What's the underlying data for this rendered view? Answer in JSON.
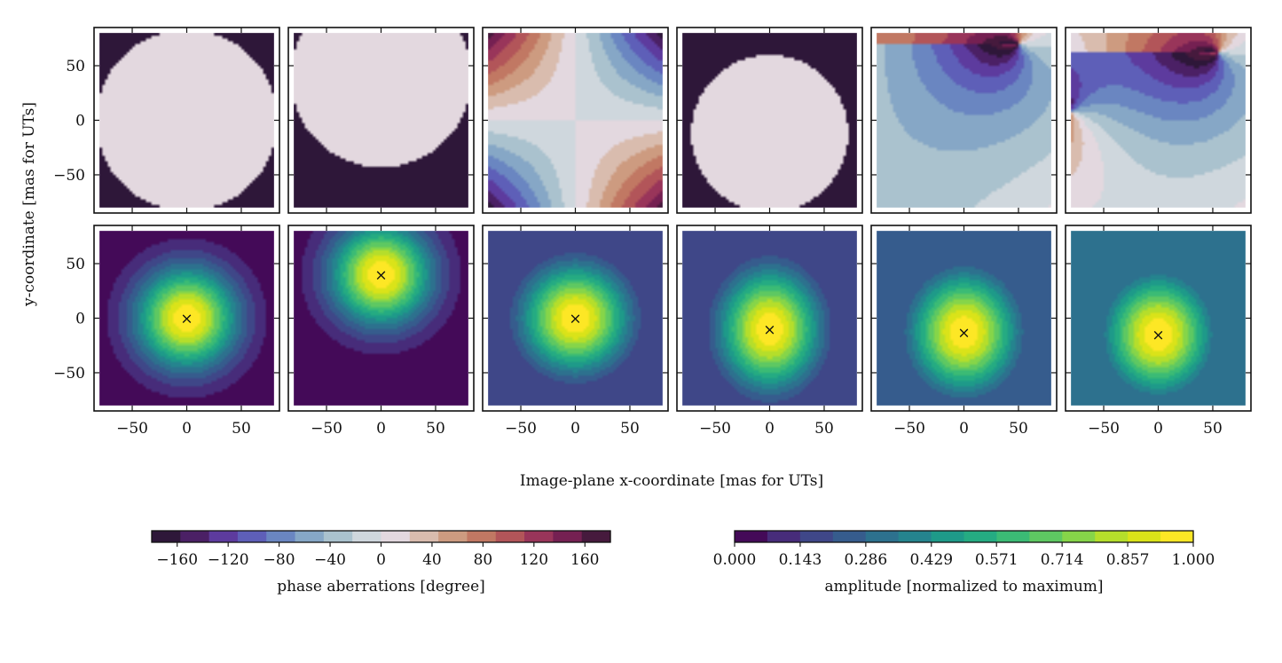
{
  "chart_data": {
    "type": "heatmap",
    "layout": "2 rows x 6 columns of image-plane maps",
    "xlabel": "Image-plane x-coordinate [mas for UTs]",
    "ylabel": "y-coordinate [mas for UTs]",
    "xlim": [
      -85,
      85
    ],
    "ylim": [
      -85,
      85
    ],
    "data_extent": [
      -80,
      80
    ],
    "xticks": [
      -50,
      0,
      50
    ],
    "yticks": [
      -50,
      0,
      50
    ],
    "xtick_labels": [
      "−50",
      "0",
      "50"
    ],
    "ytick_labels": [
      "−50",
      "0",
      "50"
    ],
    "rows": [
      {
        "name": "phase",
        "quantity": "phase aberrations [degree]",
        "panels": [
          {
            "name": "panel-1",
            "kind": "disk",
            "radius": 83,
            "cx": 0,
            "cy": 0
          },
          {
            "name": "panel-2",
            "kind": "disk",
            "radius": 83,
            "cx": 0,
            "cy": 40
          },
          {
            "name": "panel-3",
            "kind": "astigmatism",
            "amplitude": 170
          },
          {
            "name": "panel-4",
            "kind": "disk",
            "radius": 72,
            "cx": 0,
            "cy": -12
          },
          {
            "name": "panel-5",
            "kind": "vortex",
            "vortices": [
              [
                50,
                70
              ]
            ]
          },
          {
            "name": "panel-6",
            "kind": "vortex",
            "vortices": [
              [
                55,
                62
              ],
              [
                -80,
                8
              ]
            ]
          }
        ]
      },
      {
        "name": "amplitude",
        "quantity": "amplitude [normalized to maximum]",
        "panels": [
          {
            "name": "panel-1",
            "peak": [
              0,
              0
            ],
            "sigma": [
              32,
              32
            ],
            "floor": 0.02,
            "marker": [
              0,
              0
            ]
          },
          {
            "name": "panel-2",
            "peak": [
              0,
              40
            ],
            "sigma": [
              32,
              32
            ],
            "floor": 0.05,
            "marker": [
              0,
              40
            ]
          },
          {
            "name": "panel-3",
            "peak": [
              0,
              0
            ],
            "sigma": [
              34,
              34
            ],
            "floor": 0.18,
            "marker": [
              0,
              0
            ]
          },
          {
            "name": "panel-4",
            "peak": [
              0,
              -10
            ],
            "sigma": [
              32,
              38
            ],
            "floor": 0.15,
            "marker": [
              0,
              -10
            ]
          },
          {
            "name": "panel-5",
            "peak": [
              0,
              -13
            ],
            "sigma": [
              34,
              38
            ],
            "floor": 0.28,
            "marker": [
              0,
              -13
            ]
          },
          {
            "name": "panel-6",
            "peak": [
              0,
              -15
            ],
            "sigma": [
              34,
              38
            ],
            "floor": 0.3,
            "marker": [
              0,
              -15
            ]
          }
        ]
      }
    ],
    "colorbars": [
      {
        "name": "phase",
        "label": "phase aberrations [degree]",
        "range": [
          -180,
          180
        ],
        "ticks": [
          -160,
          -120,
          -80,
          -40,
          0,
          40,
          80,
          120,
          160
        ],
        "tick_labels": [
          "−160",
          "−120",
          "−80",
          "−40",
          "0",
          "40",
          "80",
          "120",
          "160"
        ],
        "colors": [
          "#2e1739",
          "#4b2065",
          "#5d3b9e",
          "#5e5fb8",
          "#6a86c1",
          "#86a7c6",
          "#aac2ce",
          "#cfd7dd",
          "#e3d8df",
          "#d9bcae",
          "#cd9b80",
          "#c17863",
          "#b25559",
          "#99355a",
          "#752052",
          "#461a3d"
        ]
      },
      {
        "name": "amplitude",
        "label": "amplitude [normalized to maximum]",
        "range": [
          0,
          1
        ],
        "ticks": [
          0.0,
          0.143,
          0.286,
          0.429,
          0.571,
          0.714,
          0.857,
          1.0
        ],
        "tick_labels": [
          "0.000",
          "0.143",
          "0.286",
          "0.429",
          "0.571",
          "0.714",
          "0.857",
          "1.000"
        ],
        "colors": [
          "#440a58",
          "#472c7a",
          "#3f4788",
          "#365c8d",
          "#2d718e",
          "#25848e",
          "#1e9a89",
          "#25ab82",
          "#3bbb75",
          "#5ec862",
          "#86d549",
          "#b5de2b",
          "#dae319",
          "#fde725"
        ]
      }
    ],
    "peak_marker": "×"
  }
}
